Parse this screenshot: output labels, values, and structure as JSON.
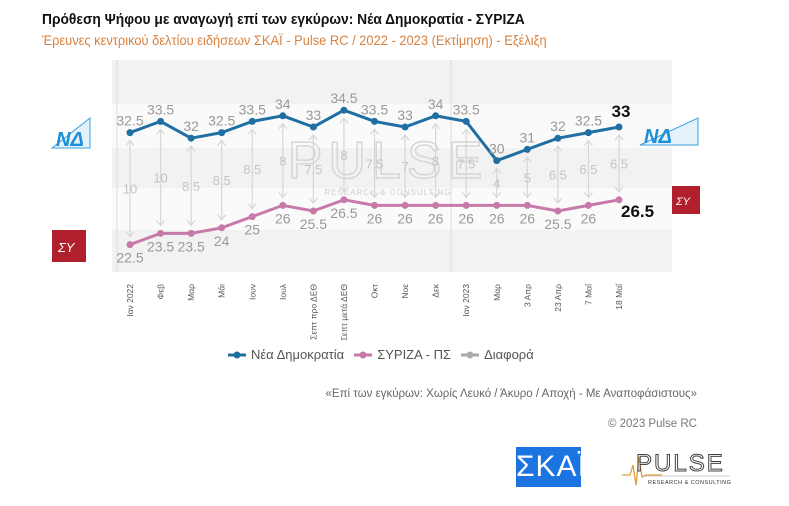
{
  "header": {
    "title": "Πρόθεση Ψήφου με αναγωγή επί των εγκύρων:  Νέα Δημοκρατία - ΣΥΡΙΖΑ",
    "subtitle": "Έρευνες κεντρικού δελτίου ειδήσεων ΣΚΑΪ - Pulse RC / 2022 - 2023   (Εκτίμηση) - Εξέλιξη"
  },
  "chart_data": {
    "type": "line",
    "categories": [
      "Ιαν 2022",
      "Φεβ",
      "Μαρ",
      "Μάι",
      "Ιουν",
      "Ιουλ",
      "Σεπτ προ ΔΕΘ",
      "Σεπτ μετά ΔΕΘ",
      "Οκτ",
      "Νοε",
      "Δεκ",
      "Ιαν 2023",
      "Μαρ",
      "3 Απρ",
      "23 Απρ",
      "7 Μαΐ",
      "18 Μαΐ"
    ],
    "series": [
      {
        "name": "Νέα Δημοκρατία",
        "color": "#1f6fa3",
        "values": [
          32.5,
          33.5,
          32,
          32.5,
          33.5,
          34,
          33,
          34.5,
          33.5,
          33,
          34,
          33.5,
          30,
          31,
          32,
          32.5,
          33
        ]
      },
      {
        "name": "ΣΥΡΙΖΑ - ΠΣ",
        "color": "#c77aa9",
        "values": [
          22.5,
          23.5,
          23.5,
          24,
          25,
          26,
          25.5,
          26.5,
          26,
          26,
          26,
          26,
          26,
          26,
          25.5,
          26,
          26.5
        ]
      },
      {
        "name": "Διαφορά",
        "color": "#bbbbbb",
        "values": [
          10,
          10,
          8.5,
          8.5,
          8.5,
          8,
          7.5,
          8,
          7.5,
          7,
          8,
          7.5,
          4,
          5,
          6.5,
          6.5,
          6.5
        ]
      }
    ],
    "legend": "bottom",
    "grid": "horizontal bands"
  },
  "logos": {
    "nd": "ΝΔ",
    "syriza": "ΣΥ",
    "watermark": "PULSE",
    "watermark_sub": "RESEARCH & CONSULTING",
    "skai": "ΣΚΑΪ",
    "pulse": "PULSE",
    "pulse_sub": "RESEARCH & CONSULTING"
  },
  "footer": {
    "note": "«Επί των εγκύρων:  Χωρίς Λευκό / Άκυρο / Αποχή - Με Αναποφάσιστους»",
    "copyright": "© 2023 Pulse RC"
  }
}
